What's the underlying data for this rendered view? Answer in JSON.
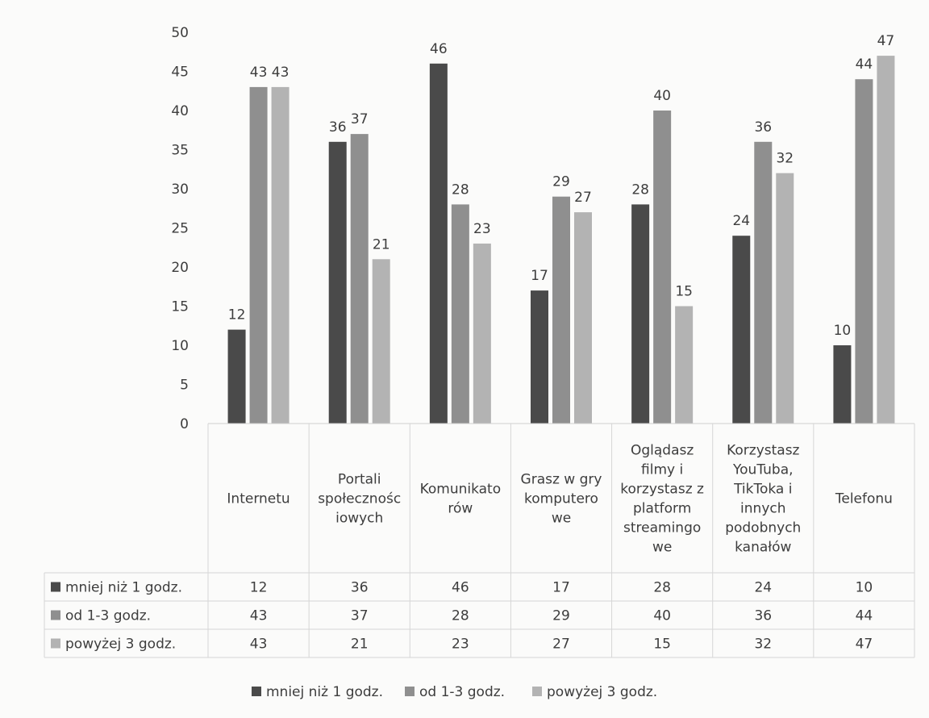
{
  "chart_data": {
    "type": "bar",
    "categories": [
      "Internetu",
      "Portali społecznościowych",
      "Komunikatorów",
      "Grasz w gry komputerowe",
      "Oglądasz filmy i korzystasz z platform streamingowe",
      "Korzystasz YouTuba, TikToka i innych podobnych kanałów",
      "Telefonu"
    ],
    "category_lines": [
      [
        "Internetu"
      ],
      [
        "Portali",
        "społecznośc",
        "iowych"
      ],
      [
        "Komunikato",
        "rów"
      ],
      [
        "Grasz w gry",
        "komputero",
        "we"
      ],
      [
        "Oglądasz",
        "filmy i",
        "korzystasz z",
        "platform",
        "streamingo",
        "we"
      ],
      [
        "Korzystasz",
        "YouTuba,",
        "TikToka i",
        "innych",
        "podobnych",
        "kanałów"
      ],
      [
        "Telefonu"
      ]
    ],
    "series": [
      {
        "name": "mniej niż 1 godz.",
        "values": [
          12,
          36,
          46,
          17,
          28,
          24,
          10
        ],
        "color": "#4a4a4a"
      },
      {
        "name": "od 1-3 godz.",
        "values": [
          43,
          37,
          28,
          29,
          40,
          36,
          44
        ],
        "color": "#8f8f8f"
      },
      {
        "name": "powyżej 3 godz.",
        "values": [
          43,
          21,
          23,
          27,
          15,
          32,
          47
        ],
        "color": "#b3b3b3"
      }
    ],
    "ylim": [
      0,
      50
    ],
    "yticks": [
      "0",
      "5",
      "10",
      "15",
      "20",
      "25",
      "30",
      "35",
      "40",
      "45",
      "50"
    ],
    "data_labels": true,
    "data_table": true,
    "legend": "bottom",
    "grid": false,
    "title": "",
    "xlabel": "",
    "ylabel": ""
  }
}
